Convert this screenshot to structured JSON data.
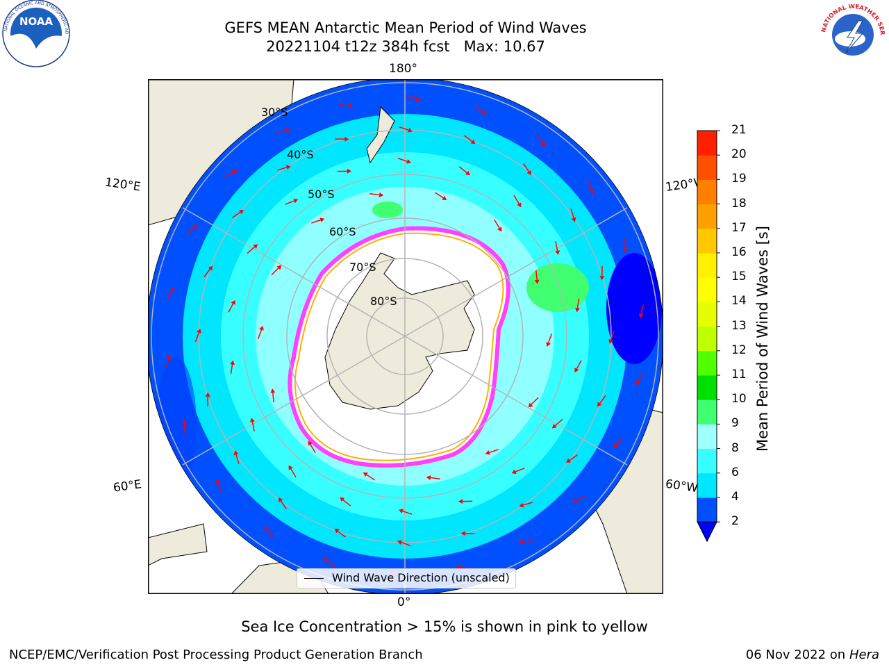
{
  "header": {
    "title_line1": "GEFS MEAN Antarctic Mean Period of Wind Waves",
    "title_line2": "20221104 t12z 384h fcst   Max: 10.67"
  },
  "logos": {
    "left": "NOAA",
    "left_ring": "NATIONAL OCEANIC AND ATMOSPHERIC ADMINISTRATION · U.S. DEPARTMENT OF COMMERCE",
    "right_ring": "NATIONAL WEATHER SERVICE"
  },
  "map": {
    "projection": "south polar stereographic",
    "longitude_labels": {
      "top": "180°",
      "bottom": "0°",
      "left_upper": "120°E",
      "left_lower": "60°E",
      "right_upper": "120°W",
      "right_lower": "60°W"
    },
    "latitude_labels": [
      "30°S",
      "40°S",
      "50°S",
      "60°S",
      "70°S",
      "80°S"
    ],
    "legend_label": "Wind Wave Direction (unscaled)",
    "colors": {
      "land": "#efebdc",
      "ice": "#ffffff",
      "ice_edge": "#ff40ff",
      "ice_inner": "#ffb000",
      "arrow": "#ff0000",
      "grid": "#b4b4b4"
    }
  },
  "colorbar": {
    "label": "Mean Period of Wind Waves [s]",
    "ticks": [
      "2",
      "4",
      "6",
      "8",
      "9",
      "10",
      "11",
      "12",
      "13",
      "14",
      "15",
      "16",
      "17",
      "18",
      "19",
      "20",
      "21"
    ],
    "colors": [
      "#0050ff",
      "#00e6ff",
      "#38ffff",
      "#a0ffff",
      "#40ff70",
      "#00e000",
      "#50ff00",
      "#c0ff00",
      "#e6ff00",
      "#ffff00",
      "#fff000",
      "#ffc800",
      "#ffa000",
      "#ff8000",
      "#ff5000",
      "#ff2000"
    ],
    "extend_color": "#0000ff"
  },
  "caption": "Sea Ice Concentration > 15% is shown in pink to yellow",
  "footer": {
    "left": "NCEP/EMC/Verification Post Processing Product Generation Branch",
    "date": "06 Nov 2022 on",
    "host": "Hera"
  }
}
